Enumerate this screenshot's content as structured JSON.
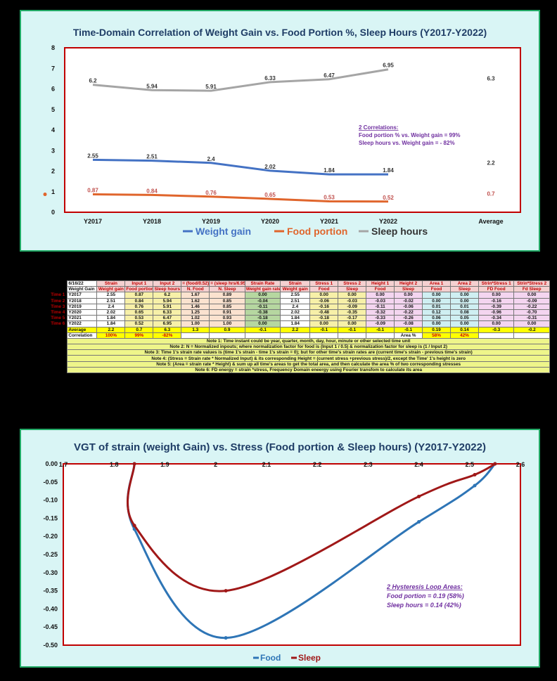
{
  "chart_data": [
    {
      "type": "line",
      "title": "Time-Domain Correlation of Weight Gain vs. Food Portion %, Sleep Hours  (Y2017-Y2022)",
      "categories": [
        "Y2017",
        "Y2018",
        "Y2019",
        "Y2020",
        "Y2021",
        "Y2022"
      ],
      "extra_category": "Average",
      "ylim": [
        0,
        8
      ],
      "yticks": [
        "0",
        "1",
        "2",
        "3",
        "4",
        "5",
        "6",
        "7",
        "8"
      ],
      "series": [
        {
          "name": "Weight gain",
          "color": "#4472c4",
          "values": [
            2.55,
            2.51,
            2.4,
            2.02,
            1.84,
            1.84
          ],
          "labels": [
            "2.55",
            "2.51",
            "2.4",
            "2.02",
            "1.84",
            "1.84"
          ],
          "average": "2.2"
        },
        {
          "name": "Food portion",
          "color": "#e0652c",
          "values": [
            0.87,
            0.84,
            0.76,
            0.65,
            0.53,
            0.52
          ],
          "labels": [
            "0.87",
            "0.84",
            "0.76",
            "0.65",
            "0.53",
            "0.52"
          ],
          "average": "0.7"
        },
        {
          "name": "Sleep hours",
          "color": "#a5a5a5",
          "values": [
            6.2,
            5.94,
            5.91,
            6.33,
            6.47,
            6.95
          ],
          "labels": [
            "6.2",
            "5.94",
            "5.91",
            "6.33",
            "6.47",
            "6.95"
          ],
          "average": "6.3"
        }
      ],
      "annotation": {
        "title": "2 Correlations:",
        "line1": "Food portion % vs. Weight gain = 99%",
        "line2": "Sleep hours vs. Weight gain = - 82%"
      },
      "legend_position": "bottom"
    },
    {
      "type": "scatter",
      "title": "VGT of strain (weight Gain) vs. Stress (Food portion & Sleep hours)  (Y2017-Y2022)",
      "xlim": [
        1.7,
        2.6
      ],
      "xticks": [
        "1.7",
        "1.8",
        "1.9",
        "2",
        "2.1",
        "2.2",
        "2.3",
        "2.4",
        "2.5",
        "2.6"
      ],
      "ylim": [
        -0.5,
        0
      ],
      "yticks": [
        "0.00",
        "-0.05",
        "-0.10",
        "-0.15",
        "-0.20",
        "-0.25",
        "-0.30",
        "-0.35",
        "-0.40",
        "-0.45",
        "-0.50"
      ],
      "series": [
        {
          "name": "Food",
          "color": "#2e75b6",
          "points": [
            [
              2.55,
              0
            ],
            [
              2.51,
              -0.06
            ],
            [
              2.4,
              -0.16
            ],
            [
              2.02,
              -0.48
            ],
            [
              1.84,
              -0.18
            ],
            [
              1.84,
              0
            ]
          ]
        },
        {
          "name": "Sleep",
          "color": "#a01818",
          "points": [
            [
              2.55,
              0
            ],
            [
              2.51,
              -0.03
            ],
            [
              2.4,
              -0.09
            ],
            [
              2.02,
              -0.35
            ],
            [
              1.84,
              -0.17
            ],
            [
              1.84,
              0
            ]
          ]
        }
      ],
      "annotation": {
        "title": "2 Hysteresis Loop Areas:",
        "line1": "Food portion = 0.19 (58%)",
        "line2": "Sleep hours = 0.14 (42%)"
      },
      "legend_position": "bottom"
    }
  ],
  "table": {
    "corner": "6/16/22",
    "header1": [
      "Strain",
      "Input 1",
      "Input 2",
      "= (food/0.52)",
      "= (sleep hrs/6.95)",
      "Strain Rate",
      "Strain",
      "Stress 1",
      "Stress 2",
      "Height 1",
      "Height 2",
      "Area 1",
      "Area 2",
      "Strin*Stress 1",
      "Strin*Stress 2"
    ],
    "header2": [
      "Weight Gain",
      "Weight gain",
      "Food portion",
      "Sleep hours",
      "N. Food",
      "N. Sleep",
      "Weight gain rate",
      "Weight gain",
      "Food",
      "Sleep",
      "Food",
      "Sleep",
      "Food",
      "Sleep",
      "FD Food",
      "Fd Sleep"
    ],
    "rows": [
      {
        "time": "Time 1",
        "cells": [
          "Y2017",
          "2.55",
          "0.87",
          "6.2",
          "1.67",
          "0.89",
          "0.00",
          "2.55",
          "0.00",
          "0.00",
          "0.00",
          "0.00",
          "0.00",
          "0.00",
          "0.00",
          "0.00"
        ]
      },
      {
        "time": "Time 2",
        "cells": [
          "Y2018",
          "2.51",
          "0.84",
          "5.94",
          "1.62",
          "0.85",
          "-0.04",
          "2.51",
          "-0.06",
          "-0.03",
          "-0.03",
          "-0.02",
          "0.00",
          "0.00",
          "-0.16",
          "-0.09"
        ]
      },
      {
        "time": "Time 3",
        "cells": [
          "Y2019",
          "2.4",
          "0.76",
          "5.91",
          "1.46",
          "0.85",
          "-0.11",
          "2.4",
          "-0.16",
          "-0.09",
          "-0.11",
          "-0.06",
          "0.01",
          "0.01",
          "-0.39",
          "-0.22"
        ]
      },
      {
        "time": "Time 4",
        "cells": [
          "Y2020",
          "2.02",
          "0.65",
          "6.33",
          "1.25",
          "0.91",
          "-0.38",
          "2.02",
          "-0.48",
          "-0.35",
          "-0.32",
          "-0.22",
          "0.12",
          "0.08",
          "-0.96",
          "-0.70"
        ]
      },
      {
        "time": "Time 5",
        "cells": [
          "Y2021",
          "1.84",
          "0.53",
          "6.47",
          "1.02",
          "0.93",
          "-0.18",
          "1.84",
          "-0.18",
          "-0.17",
          "-0.33",
          "-0.26",
          "0.06",
          "0.05",
          "-0.34",
          "-0.31"
        ]
      },
      {
        "time": "Time 6",
        "cells": [
          "Y2022",
          "1.84",
          "0.52",
          "6.95",
          "1.00",
          "1.00",
          "0.00",
          "1.84",
          "0.00",
          "0.00",
          "-0.09",
          "-0.08",
          "0.00",
          "0.00",
          "0.00",
          "0.00"
        ]
      }
    ],
    "average": [
      "Average",
      "2.2",
      "0.7",
      "6.3",
      "1.3",
      "0.9",
      "-0.1",
      "2.2",
      "-0.1",
      "-0.1",
      "-0.1",
      "-0.1",
      "0.19",
      "0.14",
      "-0.3",
      "-0.2"
    ],
    "correlation": [
      "Correlation",
      "100%",
      "99%",
      "-82%",
      "",
      "",
      "",
      "",
      "",
      "",
      "",
      "Area %",
      "58%",
      "42%",
      "",
      ""
    ],
    "notes": [
      "Note 1:  Time instant could be year, quarter, month, day, hour, minute or other selected time unit",
      "Note 2:  N = Normalized inpouts;  where normalization factor for food  is (Input 1 / 0.5) & normalization factor for sleep  is (1 / Input 2)",
      "Note 3:  Time 1's strain rate values is (time 1's strain - time 1's strain = 0);  but for other time's strain rates are (current time's strain - previous time's strain)",
      "Note 4:  (Stress = Strain rate * Normalized Input) & its corresponding Height = (current stress +previous stress)/2, except the Time' 1's height is zero",
      "Note 5:  (Area = strain rate * Height) & sum up all time's areas to get the total area,  and then calculate the area % of two corresponding stresses",
      "Note 6:  FD energy = strain *stress,  Frequency Domain eneergy using Fourier transfom to calculate its area"
    ]
  }
}
